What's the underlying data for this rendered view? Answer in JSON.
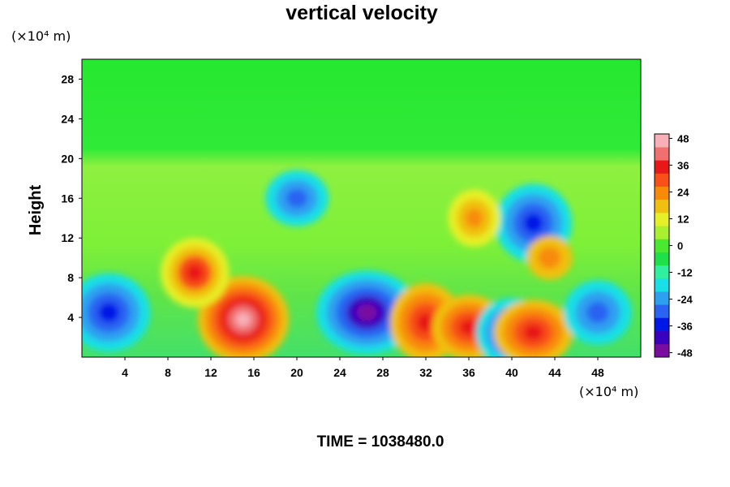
{
  "chart_data": {
    "type": "heatmap",
    "title": "vertical velocity",
    "ylabel": "Height",
    "y_unit": "(×10⁴ m)",
    "x_unit": "(×10⁴ m)",
    "xlim": [
      0,
      52
    ],
    "ylim": [
      0,
      30
    ],
    "x_ticks": [
      "4",
      "8",
      "12",
      "16",
      "20",
      "24",
      "28",
      "32",
      "36",
      "40",
      "44",
      "48"
    ],
    "y_ticks": [
      "4",
      "8",
      "12",
      "16",
      "20",
      "24",
      "28"
    ],
    "colorbar": {
      "range": [
        -50,
        50
      ],
      "tick_labels": [
        "48",
        "36",
        "24",
        "12",
        "0",
        "-12",
        "-24",
        "-36",
        "-48"
      ],
      "colors": [
        "#7a0ca0",
        "#3a00c0",
        "#0018e6",
        "#2a62f2",
        "#2ea0f0",
        "#18e0e6",
        "#30f0a0",
        "#20e04a",
        "#4ae830",
        "#a8f030",
        "#e6f028",
        "#f0c010",
        "#f88a0a",
        "#f85018",
        "#e81818",
        "#f07070",
        "#f8b0b8"
      ]
    },
    "features": [
      {
        "x": 15,
        "y": 3.8,
        "value": 50
      },
      {
        "x": 10.5,
        "y": 8.5,
        "value": 33
      },
      {
        "x": 26.5,
        "y": 4.5,
        "value": -48
      },
      {
        "x": 32,
        "y": 3.5,
        "value": 38
      },
      {
        "x": 36,
        "y": 3,
        "value": 36
      },
      {
        "x": 2.5,
        "y": 4.5,
        "value": -38
      },
      {
        "x": 40,
        "y": 2.5,
        "value": -38
      },
      {
        "x": 42,
        "y": 13.5,
        "value": -38
      },
      {
        "x": 42,
        "y": 2.5,
        "value": 36
      },
      {
        "x": 36.5,
        "y": 14,
        "value": 26
      },
      {
        "x": 20,
        "y": 16,
        "value": -30
      },
      {
        "x": 48,
        "y": 4.5,
        "value": -30
      },
      {
        "x": 43.5,
        "y": 10,
        "value": 22
      }
    ]
  },
  "footer": {
    "time_label": "TIME = 1038480.0"
  }
}
